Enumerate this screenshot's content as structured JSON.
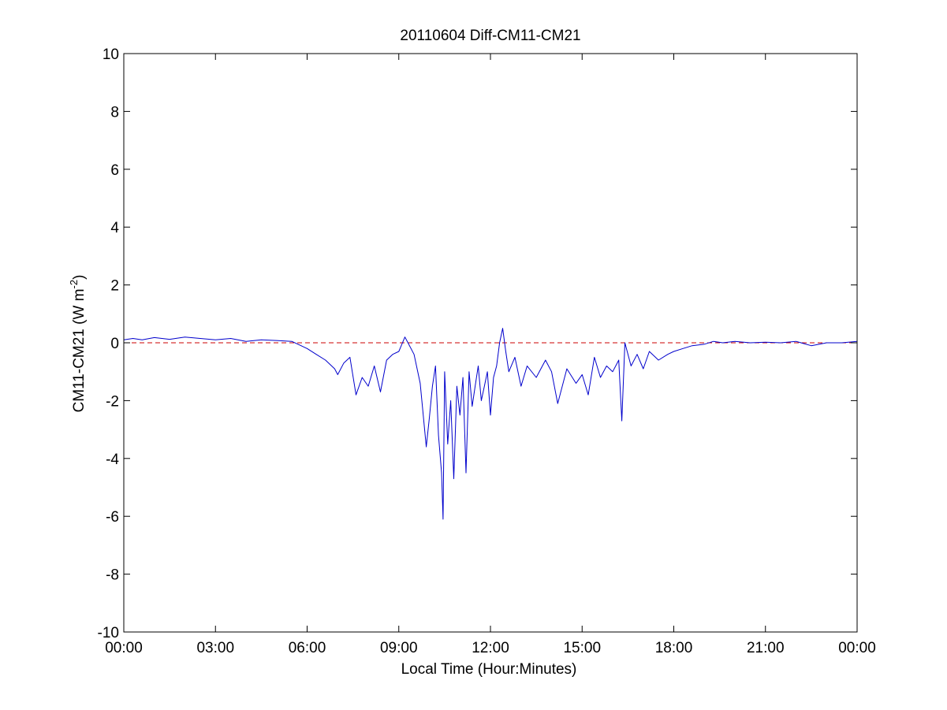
{
  "chart_data": {
    "type": "line",
    "title": "20110604 Diff-CM11-CM21",
    "xlabel": "Local Time (Hour:Minutes)",
    "ylabel_main": "CM11-CM21 (W m",
    "ylabel_sup": "-2",
    "ylabel_close": ")",
    "xlim": [
      0,
      24
    ],
    "ylim": [
      -10,
      10
    ],
    "x_unit": "hours (local time)",
    "x_ticks": [
      0,
      3,
      6,
      9,
      12,
      15,
      18,
      21,
      24
    ],
    "x_tick_labels": [
      "00:00",
      "03:00",
      "06:00",
      "09:00",
      "12:00",
      "15:00",
      "18:00",
      "21:00",
      "00:00"
    ],
    "y_ticks": [
      -10,
      -8,
      -6,
      -4,
      -2,
      0,
      2,
      4,
      6,
      8,
      10
    ],
    "y_tick_labels": [
      "-10",
      "-8",
      "-6",
      "-4",
      "-2",
      "0",
      "2",
      "4",
      "6",
      "8",
      "10"
    ],
    "grid": false,
    "legend": "none",
    "colors": {
      "series": "#0000cc",
      "reference": "#cc0000",
      "axes": "#000000"
    },
    "reference_line": {
      "y": 0,
      "style": "dashed"
    },
    "series": [
      {
        "x": [
          0.0,
          0.3,
          0.6,
          1.0,
          1.5,
          2.0,
          2.5,
          3.0,
          3.5,
          4.0,
          4.5,
          5.0,
          5.5,
          5.8,
          6.0,
          6.3,
          6.6,
          6.9,
          7.0,
          7.2,
          7.4,
          7.6,
          7.8,
          8.0,
          8.2,
          8.4,
          8.6,
          8.8,
          9.0,
          9.2,
          9.3,
          9.5,
          9.7,
          9.9,
          10.0,
          10.1,
          10.2,
          10.3,
          10.4,
          10.45,
          10.5,
          10.6,
          10.7,
          10.8,
          10.9,
          11.0,
          11.1,
          11.2,
          11.3,
          11.4,
          11.5,
          11.6,
          11.7,
          11.8,
          11.9,
          12.0,
          12.1,
          12.2,
          12.3,
          12.4,
          12.5,
          12.6,
          12.8,
          13.0,
          13.2,
          13.5,
          13.8,
          14.0,
          14.2,
          14.5,
          14.8,
          15.0,
          15.2,
          15.4,
          15.6,
          15.8,
          16.0,
          16.2,
          16.3,
          16.4,
          16.6,
          16.8,
          17.0,
          17.2,
          17.5,
          17.8,
          18.0,
          18.3,
          18.6,
          19.0,
          19.3,
          19.6,
          20.0,
          20.5,
          21.0,
          21.5,
          22.0,
          22.5,
          23.0,
          23.5,
          24.0
        ],
        "y": [
          0.1,
          0.15,
          0.1,
          0.18,
          0.12,
          0.2,
          0.15,
          0.1,
          0.15,
          0.05,
          0.1,
          0.08,
          0.05,
          -0.1,
          -0.2,
          -0.4,
          -0.6,
          -0.9,
          -1.1,
          -0.7,
          -0.5,
          -1.8,
          -1.2,
          -1.5,
          -0.8,
          -1.7,
          -0.6,
          -0.4,
          -0.3,
          0.2,
          0.0,
          -0.4,
          -1.4,
          -3.6,
          -2.6,
          -1.5,
          -0.8,
          -3.2,
          -4.5,
          -6.1,
          -1.0,
          -3.5,
          -2.0,
          -4.7,
          -1.5,
          -2.5,
          -1.2,
          -4.5,
          -1.0,
          -2.2,
          -1.5,
          -0.8,
          -2.0,
          -1.5,
          -1.0,
          -2.5,
          -1.2,
          -0.8,
          0.0,
          0.5,
          -0.3,
          -1.0,
          -0.5,
          -1.5,
          -0.8,
          -1.2,
          -0.6,
          -1.0,
          -2.1,
          -0.9,
          -1.4,
          -1.1,
          -1.8,
          -0.5,
          -1.2,
          -0.8,
          -1.0,
          -0.6,
          -2.7,
          0.0,
          -0.8,
          -0.4,
          -0.9,
          -0.3,
          -0.6,
          -0.4,
          -0.3,
          -0.2,
          -0.1,
          -0.05,
          0.05,
          0.0,
          0.05,
          0.0,
          0.02,
          0.0,
          0.05,
          -0.1,
          0.0,
          0.0,
          0.05
        ]
      }
    ]
  }
}
